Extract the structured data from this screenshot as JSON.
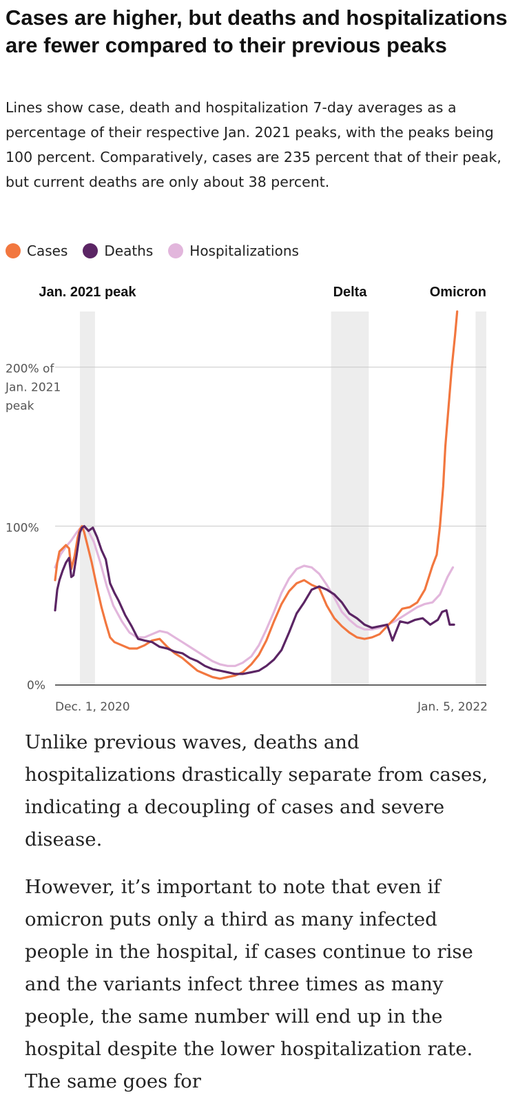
{
  "header": {
    "title": "Cases are higher, but deaths and hospitalizations are fewer compared to their previous peaks",
    "subtitle": "Lines show case, death and hospitalization 7-day averages as a percentage of their respective Jan. 2021 peaks, with the peaks being 100 percent. Comparatively, cases are 235 percent that of their peak, but current deaths are only about 38 percent."
  },
  "legend": [
    {
      "label": "Cases",
      "color": "#f2773f"
    },
    {
      "label": "Deaths",
      "color": "#5b2564"
    },
    {
      "label": "Hospitalizations",
      "color": "#e2b6dc"
    }
  ],
  "chart_data": {
    "type": "line",
    "title": "",
    "x_start_label": "Dec. 1, 2020",
    "x_end_label": "Jan. 5, 2022",
    "xlim": [
      "2020-12-01",
      "2022-01-05"
    ],
    "ylim": [
      0,
      235
    ],
    "yticks": [
      {
        "value": 0,
        "label": "0%"
      },
      {
        "value": 100,
        "label": "100%"
      },
      {
        "value": 200,
        "label": "200% of Jan. 2021 peak"
      }
    ],
    "grid": true,
    "legend_position": "top-left",
    "shaded_periods": [
      {
        "label": "Jan. 2021 peak",
        "start": "2020-12-24",
        "end": "2021-01-07"
      },
      {
        "label": "Delta",
        "start": "2021-08-14",
        "end": "2021-09-18"
      },
      {
        "label": "Omicron",
        "start": "2021-12-26",
        "end": "2022-01-05"
      }
    ],
    "series": [
      {
        "name": "Cases",
        "color": "#f2773f",
        "points": [
          [
            "2020-12-01",
            66
          ],
          [
            "2020-12-03",
            77
          ],
          [
            "2020-12-05",
            84
          ],
          [
            "2020-12-08",
            86
          ],
          [
            "2020-12-11",
            88
          ],
          [
            "2020-12-14",
            86
          ],
          [
            "2020-12-16",
            73
          ],
          [
            "2020-12-19",
            81
          ],
          [
            "2020-12-22",
            93
          ],
          [
            "2020-12-24",
            98
          ],
          [
            "2020-12-26",
            100
          ],
          [
            "2020-12-28",
            96
          ],
          [
            "2020-12-31",
            88
          ],
          [
            "2021-01-04",
            77
          ],
          [
            "2021-01-09",
            61
          ],
          [
            "2021-01-13",
            49
          ],
          [
            "2021-01-17",
            39
          ],
          [
            "2021-01-21",
            30
          ],
          [
            "2021-01-25",
            27
          ],
          [
            "2021-02-01",
            25
          ],
          [
            "2021-02-08",
            23
          ],
          [
            "2021-02-15",
            23
          ],
          [
            "2021-02-22",
            25
          ],
          [
            "2021-03-01",
            28
          ],
          [
            "2021-03-08",
            29
          ],
          [
            "2021-03-15",
            24
          ],
          [
            "2021-03-22",
            20
          ],
          [
            "2021-03-29",
            17
          ],
          [
            "2021-04-05",
            13
          ],
          [
            "2021-04-12",
            9
          ],
          [
            "2021-04-19",
            7
          ],
          [
            "2021-04-26",
            5
          ],
          [
            "2021-05-03",
            4
          ],
          [
            "2021-05-10",
            5
          ],
          [
            "2021-05-17",
            6
          ],
          [
            "2021-05-24",
            8
          ],
          [
            "2021-06-01",
            13
          ],
          [
            "2021-06-08",
            19
          ],
          [
            "2021-06-15",
            28
          ],
          [
            "2021-06-22",
            40
          ],
          [
            "2021-06-29",
            51
          ],
          [
            "2021-07-06",
            59
          ],
          [
            "2021-07-13",
            64
          ],
          [
            "2021-07-20",
            66
          ],
          [
            "2021-07-27",
            63
          ],
          [
            "2021-08-03",
            61
          ],
          [
            "2021-08-10",
            50
          ],
          [
            "2021-08-17",
            42
          ],
          [
            "2021-08-24",
            37
          ],
          [
            "2021-08-31",
            33
          ],
          [
            "2021-09-07",
            30
          ],
          [
            "2021-09-14",
            29
          ],
          [
            "2021-09-21",
            30
          ],
          [
            "2021-09-28",
            32
          ],
          [
            "2021-10-05",
            37
          ],
          [
            "2021-10-12",
            42
          ],
          [
            "2021-10-19",
            48
          ],
          [
            "2021-10-26",
            49
          ],
          [
            "2021-11-02",
            52
          ],
          [
            "2021-11-09",
            60
          ],
          [
            "2021-11-16",
            75
          ],
          [
            "2021-11-20",
            82
          ],
          [
            "2021-11-23",
            100
          ],
          [
            "2021-11-26",
            125
          ],
          [
            "2021-11-28",
            150
          ],
          [
            "2021-12-01",
            175
          ],
          [
            "2021-12-04",
            200
          ],
          [
            "2021-12-07",
            220
          ],
          [
            "2021-12-09",
            235
          ]
        ]
      },
      {
        "name": "Deaths",
        "color": "#5b2564",
        "points": [
          [
            "2020-12-01",
            47
          ],
          [
            "2020-12-03",
            60
          ],
          [
            "2020-12-05",
            66
          ],
          [
            "2020-12-08",
            72
          ],
          [
            "2020-12-11",
            77
          ],
          [
            "2020-12-14",
            80
          ],
          [
            "2020-12-16",
            68
          ],
          [
            "2020-12-18",
            69
          ],
          [
            "2020-12-21",
            82
          ],
          [
            "2020-12-24",
            96
          ],
          [
            "2020-12-26",
            99
          ],
          [
            "2020-12-28",
            100
          ],
          [
            "2021-01-01",
            97
          ],
          [
            "2021-01-05",
            99
          ],
          [
            "2021-01-09",
            93
          ],
          [
            "2021-01-13",
            85
          ],
          [
            "2021-01-17",
            79
          ],
          [
            "2021-01-21",
            64
          ],
          [
            "2021-01-25",
            58
          ],
          [
            "2021-01-29",
            53
          ],
          [
            "2021-02-04",
            44
          ],
          [
            "2021-02-10",
            37
          ],
          [
            "2021-02-16",
            29
          ],
          [
            "2021-02-22",
            28
          ],
          [
            "2021-03-01",
            27
          ],
          [
            "2021-03-08",
            24
          ],
          [
            "2021-03-15",
            23
          ],
          [
            "2021-03-22",
            21
          ],
          [
            "2021-03-29",
            20
          ],
          [
            "2021-04-05",
            17
          ],
          [
            "2021-04-12",
            15
          ],
          [
            "2021-04-19",
            12
          ],
          [
            "2021-04-26",
            10
          ],
          [
            "2021-05-03",
            9
          ],
          [
            "2021-05-10",
            8
          ],
          [
            "2021-05-17",
            7
          ],
          [
            "2021-05-24",
            7
          ],
          [
            "2021-06-01",
            8
          ],
          [
            "2021-06-08",
            9
          ],
          [
            "2021-06-15",
            12
          ],
          [
            "2021-06-22",
            16
          ],
          [
            "2021-06-29",
            22
          ],
          [
            "2021-07-06",
            33
          ],
          [
            "2021-07-13",
            45
          ],
          [
            "2021-07-20",
            52
          ],
          [
            "2021-07-27",
            60
          ],
          [
            "2021-08-03",
            62
          ],
          [
            "2021-08-10",
            60
          ],
          [
            "2021-08-17",
            57
          ],
          [
            "2021-08-24",
            52
          ],
          [
            "2021-08-31",
            45
          ],
          [
            "2021-09-07",
            42
          ],
          [
            "2021-09-14",
            38
          ],
          [
            "2021-09-21",
            36
          ],
          [
            "2021-09-28",
            37
          ],
          [
            "2021-10-05",
            38
          ],
          [
            "2021-10-10",
            28
          ],
          [
            "2021-10-17",
            40
          ],
          [
            "2021-10-24",
            39
          ],
          [
            "2021-10-31",
            41
          ],
          [
            "2021-11-07",
            42
          ],
          [
            "2021-11-14",
            38
          ],
          [
            "2021-11-21",
            41
          ],
          [
            "2021-11-25",
            46
          ],
          [
            "2021-11-29",
            47
          ],
          [
            "2021-12-02",
            38
          ],
          [
            "2021-12-06",
            38
          ]
        ]
      },
      {
        "name": "Hospitalizations",
        "color": "#e2b6dc",
        "points": [
          [
            "2020-12-01",
            74
          ],
          [
            "2020-12-06",
            82
          ],
          [
            "2020-12-11",
            87
          ],
          [
            "2020-12-16",
            91
          ],
          [
            "2020-12-21",
            96
          ],
          [
            "2020-12-26",
            100
          ],
          [
            "2020-12-31",
            98
          ],
          [
            "2021-01-06",
            90
          ],
          [
            "2021-01-12",
            77
          ],
          [
            "2021-01-18",
            62
          ],
          [
            "2021-01-24",
            50
          ],
          [
            "2021-02-01",
            40
          ],
          [
            "2021-02-08",
            33
          ],
          [
            "2021-02-15",
            30
          ],
          [
            "2021-02-22",
            30
          ],
          [
            "2021-03-01",
            32
          ],
          [
            "2021-03-08",
            34
          ],
          [
            "2021-03-15",
            33
          ],
          [
            "2021-03-22",
            30
          ],
          [
            "2021-03-29",
            27
          ],
          [
            "2021-04-05",
            24
          ],
          [
            "2021-04-12",
            21
          ],
          [
            "2021-04-19",
            18
          ],
          [
            "2021-04-26",
            15
          ],
          [
            "2021-05-03",
            13
          ],
          [
            "2021-05-10",
            12
          ],
          [
            "2021-05-17",
            12
          ],
          [
            "2021-05-24",
            14
          ],
          [
            "2021-06-01",
            18
          ],
          [
            "2021-06-08",
            25
          ],
          [
            "2021-06-15",
            35
          ],
          [
            "2021-06-22",
            46
          ],
          [
            "2021-06-29",
            58
          ],
          [
            "2021-07-06",
            67
          ],
          [
            "2021-07-13",
            73
          ],
          [
            "2021-07-20",
            75
          ],
          [
            "2021-07-27",
            74
          ],
          [
            "2021-08-03",
            70
          ],
          [
            "2021-08-10",
            63
          ],
          [
            "2021-08-17",
            55
          ],
          [
            "2021-08-24",
            46
          ],
          [
            "2021-08-31",
            41
          ],
          [
            "2021-09-07",
            37
          ],
          [
            "2021-09-14",
            35
          ],
          [
            "2021-09-21",
            35
          ],
          [
            "2021-09-28",
            36
          ],
          [
            "2021-10-05",
            38
          ],
          [
            "2021-10-12",
            40
          ],
          [
            "2021-10-19",
            43
          ],
          [
            "2021-10-26",
            46
          ],
          [
            "2021-11-02",
            49
          ],
          [
            "2021-11-09",
            51
          ],
          [
            "2021-11-16",
            52
          ],
          [
            "2021-11-23",
            57
          ],
          [
            "2021-11-30",
            68
          ],
          [
            "2021-12-05",
            74
          ]
        ]
      }
    ]
  },
  "article": {
    "paragraphs": [
      "Unlike previous waves, deaths and hospitalizations drastically separate from cases, indicating a decoupling of cases and severe disease.",
      "However, it’s important to note that even if omicron puts only a third as many infected people in the hospital, if cases continue to rise and the variants infect three times as many people, the same number will end up in the hospital despite the lower hospitalization rate. The same goes for"
    ]
  }
}
